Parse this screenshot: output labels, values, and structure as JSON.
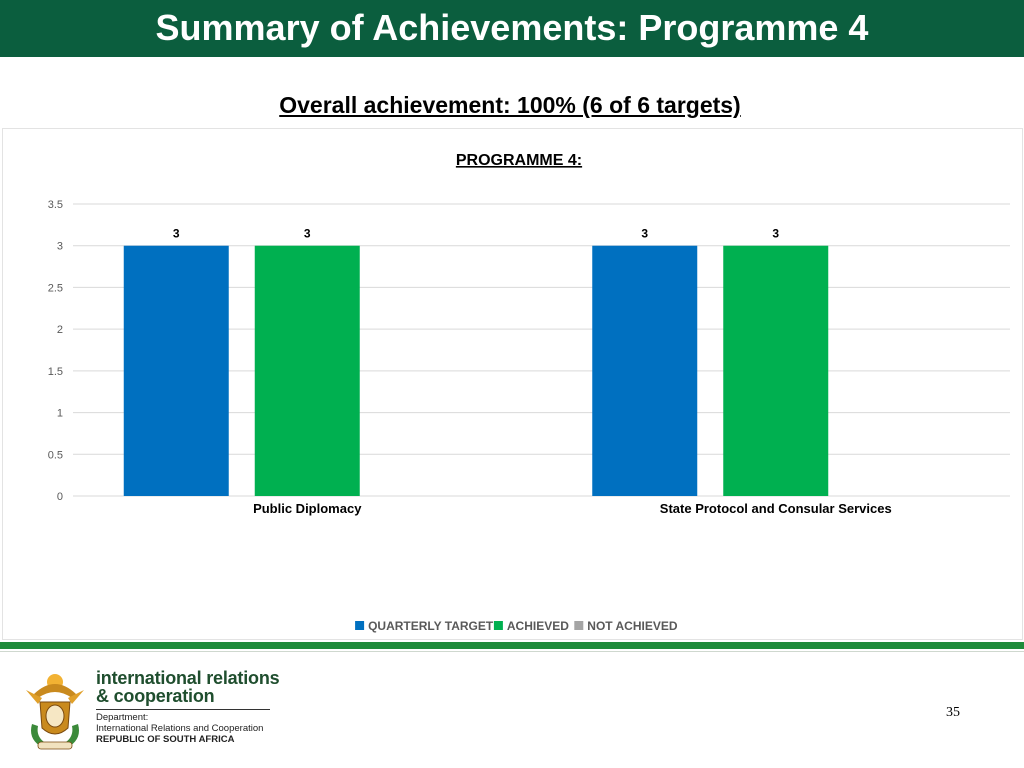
{
  "slide": {
    "title": "Summary of Achievements: Programme 4",
    "subtitle": "Overall achievement: 100% (6 of 6 targets)",
    "page_number": "35"
  },
  "footer": {
    "logo_line1": "international relations",
    "logo_line2": "& cooperation",
    "dept_line1": "Department:",
    "dept_line2": "International Relations and Cooperation",
    "dept_line3": "REPUBLIC OF SOUTH AFRICA"
  },
  "colors": {
    "header_bg": "#0b5e3e",
    "quarterly_target": "#0070c0",
    "achieved": "#00b050",
    "not_achieved": "#a5a5a5",
    "footer_rule": "#1e8b3a"
  },
  "chart_data": {
    "type": "bar",
    "title": "PROGRAMME 4:",
    "categories": [
      "Public Diplomacy",
      "State Protocol and Consular Services"
    ],
    "series": [
      {
        "name": "QUARTERLY TARGET",
        "values": [
          3,
          3
        ],
        "color": "#0070c0"
      },
      {
        "name": "ACHIEVED",
        "values": [
          3,
          3
        ],
        "color": "#00b050"
      },
      {
        "name": "NOT ACHIEVED",
        "values": [
          null,
          null
        ],
        "color": "#a5a5a5"
      }
    ],
    "data_labels": [
      [
        "3",
        "3"
      ],
      [
        "3",
        "3"
      ]
    ],
    "ylim": [
      0,
      3.5
    ],
    "yticks": [
      "0",
      "0.5",
      "1",
      "1.5",
      "2",
      "2.5",
      "3",
      "3.5"
    ],
    "ytick_values": [
      0,
      0.5,
      1,
      1.5,
      2,
      2.5,
      3,
      3.5
    ],
    "grid": true,
    "legend_position": "bottom"
  }
}
